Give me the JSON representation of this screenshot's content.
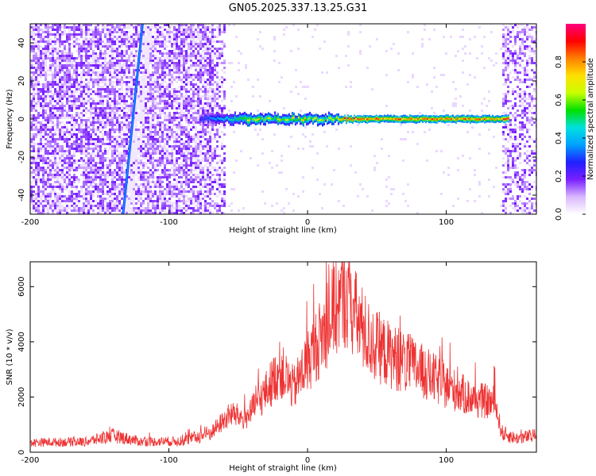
{
  "page": {
    "title": "GN05.2025.337.13.25.G31"
  },
  "chart_data": [
    {
      "type": "heatmap",
      "name": "spectrogram",
      "xlabel": "Height of straight line (km)",
      "ylabel": "Frequency (Hz)",
      "xlim": [
        -200,
        165
      ],
      "ylim": [
        -50,
        50
      ],
      "xticks": [
        -200,
        -100,
        0,
        100
      ],
      "yticks": [
        -40,
        -20,
        0,
        20,
        40
      ],
      "colorbar": {
        "label": "Normalized spectral amplitude",
        "range": [
          0,
          1
        ],
        "ticks": [
          "0.0",
          "0.2",
          "0.4",
          "0.6",
          "0.8"
        ],
        "tick_values": [
          0.0,
          0.2,
          0.4,
          0.6,
          0.8
        ],
        "colors": [
          "#ffffff",
          "#d9b8ff",
          "#7a1fff",
          "#2020ff",
          "#00a0ff",
          "#00e0e0",
          "#00e000",
          "#c8ff00",
          "#ffe000",
          "#ff8000",
          "#ff0000",
          "#ff0080"
        ]
      },
      "features": [
        {
          "label": "noise band left",
          "x_range": [
            -200,
            -60
          ],
          "level": 0.15
        },
        {
          "label": "noise band right",
          "x_range": [
            140,
            165
          ],
          "level": 0.15
        },
        {
          "label": "tilted streak",
          "x_start": -133,
          "y_start": -50,
          "x_end": -119,
          "y_end": 50,
          "level": 0.3
        },
        {
          "label": "carrier signal",
          "x_range": [
            -78,
            145
          ],
          "frequency": 0,
          "peak_level": 0.95
        }
      ]
    },
    {
      "type": "line",
      "name": "snr",
      "xlabel": "Height of straight line (km)",
      "ylabel": "SNR (10 * v/v)",
      "xlim": [
        -200,
        165
      ],
      "ylim": [
        0,
        6900
      ],
      "xticks": [
        -200,
        -100,
        0,
        100
      ],
      "yticks": [
        0,
        2000,
        4000,
        6000
      ],
      "color": "#ee3333",
      "envelope": [
        {
          "x": -200,
          "y": 350
        },
        {
          "x": -160,
          "y": 380
        },
        {
          "x": -140,
          "y": 600
        },
        {
          "x": -120,
          "y": 380
        },
        {
          "x": -90,
          "y": 400
        },
        {
          "x": -70,
          "y": 700
        },
        {
          "x": -55,
          "y": 1400
        },
        {
          "x": -45,
          "y": 1200
        },
        {
          "x": -30,
          "y": 2200
        },
        {
          "x": -20,
          "y": 3000
        },
        {
          "x": -10,
          "y": 2300
        },
        {
          "x": 0,
          "y": 3300
        },
        {
          "x": 10,
          "y": 4200
        },
        {
          "x": 20,
          "y": 5200
        },
        {
          "x": 27,
          "y": 5700
        },
        {
          "x": 35,
          "y": 4900
        },
        {
          "x": 45,
          "y": 4000
        },
        {
          "x": 60,
          "y": 3500
        },
        {
          "x": 80,
          "y": 3000
        },
        {
          "x": 100,
          "y": 2400
        },
        {
          "x": 120,
          "y": 1900
        },
        {
          "x": 135,
          "y": 1800
        },
        {
          "x": 140,
          "y": 700
        },
        {
          "x": 150,
          "y": 500
        },
        {
          "x": 165,
          "y": 600
        }
      ]
    }
  ]
}
